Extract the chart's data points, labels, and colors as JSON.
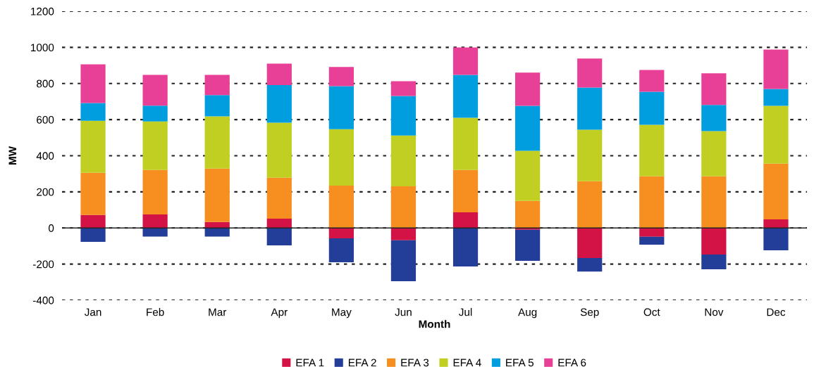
{
  "chart_data": {
    "type": "bar",
    "stacked": true,
    "xlabel": "Month",
    "ylabel": "MW",
    "categories": [
      "Jan",
      "Feb",
      "Mar",
      "Apr",
      "May",
      "Jun",
      "Jul",
      "Aug",
      "Sep",
      "Oct",
      "Nov",
      "Dec"
    ],
    "series": [
      {
        "name": "EFA 1",
        "color": "#d31245",
        "values": [
          72,
          75,
          33,
          52,
          -57,
          -68,
          87,
          -10,
          -166,
          -49,
          -147,
          48
        ]
      },
      {
        "name": "EFA 2",
        "color": "#223e99",
        "values": [
          -77,
          -48,
          -48,
          -96,
          -133,
          -227,
          -213,
          -172,
          -75,
          -43,
          -82,
          -124
        ]
      },
      {
        "name": "EFA 3",
        "color": "#f68f1f",
        "values": [
          234,
          246,
          296,
          226,
          235,
          231,
          234,
          150,
          259,
          286,
          286,
          308
        ]
      },
      {
        "name": "EFA 4",
        "color": "#c1ce22",
        "values": [
          288,
          269,
          289,
          305,
          312,
          281,
          289,
          277,
          285,
          285,
          250,
          320
        ]
      },
      {
        "name": "EFA 5",
        "color": "#009ede",
        "values": [
          98,
          87,
          118,
          208,
          238,
          219,
          238,
          249,
          234,
          183,
          145,
          94
        ]
      },
      {
        "name": "EFA 6",
        "color": "#e84096",
        "values": [
          214,
          171,
          112,
          119,
          106,
          82,
          152,
          184,
          160,
          121,
          175,
          218
        ]
      }
    ],
    "ylim": [
      -400,
      1200
    ],
    "yticks": [
      -400,
      -200,
      0,
      200,
      400,
      600,
      800,
      1000,
      1200
    ],
    "grid": "y",
    "legend": "bottom"
  }
}
